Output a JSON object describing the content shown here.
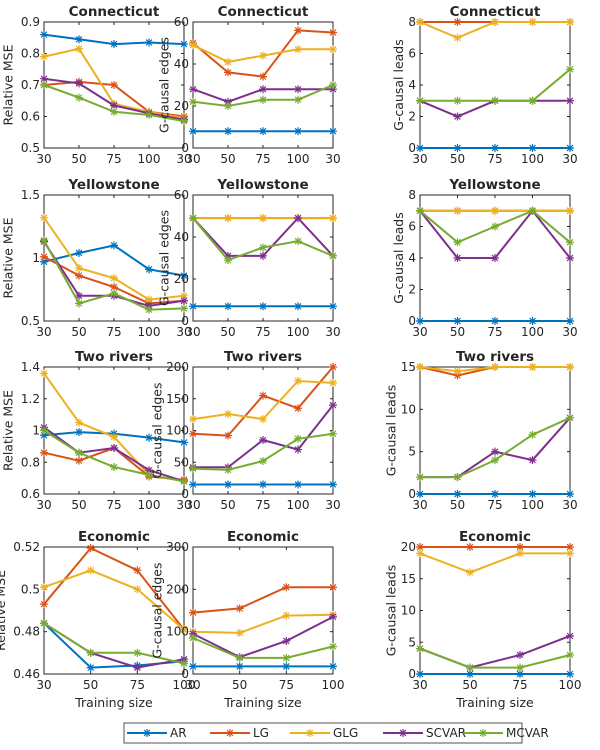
{
  "legend": [
    {
      "name": "AR",
      "color": "#0072BD"
    },
    {
      "name": "LG",
      "color": "#D95319"
    },
    {
      "name": "GLG",
      "color": "#EDB120"
    },
    {
      "name": "SCVAR",
      "color": "#7E2F8E"
    },
    {
      "name": "MCVAR",
      "color": "#77AC30"
    }
  ],
  "chart_data": [
    {
      "type": "line",
      "title": "Connecticut",
      "ylabel": "Relative MSE",
      "xlabel": "",
      "categories": [
        "30",
        "50",
        "75",
        "100",
        "30"
      ],
      "ylim": [
        0.5,
        0.9
      ],
      "yticks": [
        "0.5",
        "0.6",
        "0.7",
        "0.8",
        "0.9"
      ],
      "series": [
        {
          "name": "AR",
          "values": [
            0.86,
            0.845,
            0.83,
            0.835,
            0.83
          ]
        },
        {
          "name": "LG",
          "values": [
            0.7,
            0.71,
            0.7,
            0.615,
            0.6
          ]
        },
        {
          "name": "GLG",
          "values": [
            0.79,
            0.815,
            0.64,
            0.615,
            0.595
          ]
        },
        {
          "name": "SCVAR",
          "values": [
            0.72,
            0.705,
            0.635,
            0.61,
            0.59
          ]
        },
        {
          "name": "MCVAR",
          "values": [
            0.7,
            0.66,
            0.615,
            0.605,
            0.585
          ]
        }
      ]
    },
    {
      "type": "line",
      "title": "Connecticut",
      "ylabel": "G-causal edges",
      "xlabel": "",
      "categories": [
        "30",
        "50",
        "75",
        "100",
        "30"
      ],
      "ylim": [
        0,
        60
      ],
      "yticks": [
        "0",
        "20",
        "40",
        "60"
      ],
      "series": [
        {
          "name": "AR",
          "values": [
            8,
            8,
            8,
            8,
            8
          ]
        },
        {
          "name": "LG",
          "values": [
            50,
            36,
            34,
            56,
            55
          ]
        },
        {
          "name": "GLG",
          "values": [
            49,
            41,
            44,
            47,
            47
          ]
        },
        {
          "name": "SCVAR",
          "values": [
            28,
            22,
            28,
            28,
            28
          ]
        },
        {
          "name": "MCVAR",
          "values": [
            22,
            20,
            23,
            23,
            30
          ]
        }
      ]
    },
    {
      "type": "line",
      "title": "Connecticut",
      "ylabel": "G-causal leads",
      "xlabel": "",
      "categories": [
        "30",
        "50",
        "75",
        "100",
        "30"
      ],
      "ylim": [
        0,
        8
      ],
      "yticks": [
        "0",
        "2",
        "4",
        "6",
        "8"
      ],
      "series": [
        {
          "name": "AR",
          "values": [
            0,
            0,
            0,
            0,
            0
          ]
        },
        {
          "name": "LG",
          "values": [
            8,
            8,
            8,
            8,
            8
          ]
        },
        {
          "name": "GLG",
          "values": [
            8,
            7,
            8,
            8,
            8
          ]
        },
        {
          "name": "SCVAR",
          "values": [
            3,
            2,
            3,
            3,
            3
          ]
        },
        {
          "name": "MCVAR",
          "values": [
            3,
            3,
            3,
            3,
            5
          ]
        }
      ]
    },
    {
      "type": "line",
      "title": "Yellowstone",
      "ylabel": "Relative MSE",
      "xlabel": "",
      "categories": [
        "30",
        "50",
        "75",
        "100",
        "30"
      ],
      "ylim": [
        0.5,
        1.5
      ],
      "yticks": [
        "0.5",
        "1",
        "1.5"
      ],
      "series": [
        {
          "name": "AR",
          "values": [
            0.97,
            1.04,
            1.1,
            0.91,
            0.86
          ]
        },
        {
          "name": "LG",
          "values": [
            1.01,
            0.86,
            0.77,
            0.64,
            0.66
          ]
        },
        {
          "name": "GLG",
          "values": [
            1.32,
            0.92,
            0.84,
            0.67,
            0.7
          ]
        },
        {
          "name": "SCVAR",
          "values": [
            1.13,
            0.7,
            0.7,
            0.62,
            0.66
          ]
        },
        {
          "name": "MCVAR",
          "values": [
            1.14,
            0.64,
            0.72,
            0.59,
            0.6
          ]
        }
      ]
    },
    {
      "type": "line",
      "title": "Yellowstone",
      "ylabel": "G-causal edges",
      "xlabel": "",
      "categories": [
        "30",
        "50",
        "75",
        "100",
        "30"
      ],
      "ylim": [
        0,
        60
      ],
      "yticks": [
        "0",
        "20",
        "40",
        "60"
      ],
      "series": [
        {
          "name": "AR",
          "values": [
            7,
            7,
            7,
            7,
            7
          ]
        },
        {
          "name": "LG",
          "values": [
            49,
            49,
            49,
            49,
            49
          ]
        },
        {
          "name": "GLG",
          "values": [
            49,
            49,
            49,
            49,
            49
          ]
        },
        {
          "name": "SCVAR",
          "values": [
            49,
            31,
            31,
            49,
            31
          ]
        },
        {
          "name": "MCVAR",
          "values": [
            49,
            29,
            35,
            38,
            31
          ]
        }
      ]
    },
    {
      "type": "line",
      "title": "Yellowstone",
      "ylabel": "G-causal leads",
      "xlabel": "",
      "categories": [
        "30",
        "50",
        "75",
        "100",
        "30"
      ],
      "ylim": [
        0,
        8
      ],
      "yticks": [
        "0",
        "2",
        "4",
        "6",
        "8"
      ],
      "series": [
        {
          "name": "AR",
          "values": [
            0,
            0,
            0,
            0,
            0
          ]
        },
        {
          "name": "LG",
          "values": [
            7,
            7,
            7,
            7,
            7
          ]
        },
        {
          "name": "GLG",
          "values": [
            7,
            7,
            7,
            7,
            7
          ]
        },
        {
          "name": "SCVAR",
          "values": [
            7,
            4,
            4,
            7,
            4
          ]
        },
        {
          "name": "MCVAR",
          "values": [
            7,
            5,
            6,
            7,
            5
          ]
        }
      ]
    },
    {
      "type": "line",
      "title": "Two rivers",
      "ylabel": "Relative MSE",
      "xlabel": "",
      "categories": [
        "30",
        "50",
        "75",
        "100",
        "30"
      ],
      "ylim": [
        0.6,
        1.4
      ],
      "yticks": [
        "0.6",
        "0.8",
        "1",
        "1.2",
        "1.4"
      ],
      "series": [
        {
          "name": "AR",
          "values": [
            0.97,
            0.99,
            0.98,
            0.955,
            0.925
          ]
        },
        {
          "name": "LG",
          "values": [
            0.86,
            0.81,
            0.89,
            0.71,
            0.69
          ]
        },
        {
          "name": "GLG",
          "values": [
            1.36,
            1.05,
            0.96,
            0.72,
            0.68
          ]
        },
        {
          "name": "SCVAR",
          "values": [
            1.02,
            0.86,
            0.89,
            0.75,
            0.68
          ]
        },
        {
          "name": "MCVAR",
          "values": [
            1.0,
            0.86,
            0.77,
            0.72,
            0.68
          ]
        }
      ]
    },
    {
      "type": "line",
      "title": "Two rivers",
      "ylabel": "G-causal edges",
      "xlabel": "",
      "categories": [
        "30",
        "50",
        "75",
        "100",
        "30"
      ],
      "ylim": [
        0,
        200
      ],
      "yticks": [
        "0",
        "50",
        "100",
        "150",
        "200"
      ],
      "series": [
        {
          "name": "AR",
          "values": [
            15,
            15,
            15,
            15,
            15
          ]
        },
        {
          "name": "LG",
          "values": [
            95,
            92,
            155,
            135,
            200
          ]
        },
        {
          "name": "GLG",
          "values": [
            118,
            126,
            118,
            178,
            175
          ]
        },
        {
          "name": "SCVAR",
          "values": [
            42,
            42,
            85,
            70,
            140
          ]
        },
        {
          "name": "MCVAR",
          "values": [
            40,
            38,
            52,
            87,
            95
          ]
        }
      ]
    },
    {
      "type": "line",
      "title": "Two rivers",
      "ylabel": "G-causal leads",
      "xlabel": "",
      "categories": [
        "30",
        "50",
        "75",
        "100",
        "30"
      ],
      "ylim": [
        0,
        15
      ],
      "yticks": [
        "0",
        "5",
        "10",
        "15"
      ],
      "series": [
        {
          "name": "AR",
          "values": [
            0,
            0,
            0,
            0,
            0
          ]
        },
        {
          "name": "LG",
          "values": [
            15,
            14,
            15,
            15,
            15
          ]
        },
        {
          "name": "GLG",
          "values": [
            15,
            14.5,
            15,
            15,
            15
          ]
        },
        {
          "name": "SCVAR",
          "values": [
            2,
            2,
            5,
            4,
            9
          ]
        },
        {
          "name": "MCVAR",
          "values": [
            2,
            2,
            4,
            7,
            9
          ]
        }
      ]
    },
    {
      "type": "line",
      "title": "Economic",
      "ylabel": "Relative MSE",
      "xlabel": "Training size",
      "categories": [
        "30",
        "50",
        "75",
        "100"
      ],
      "ylim": [
        0.46,
        0.52
      ],
      "yticks": [
        "0.46",
        "0.48",
        "0.5",
        "0.52"
      ],
      "series": [
        {
          "name": "AR",
          "values": [
            0.484,
            0.463,
            0.464,
            0.466
          ]
        },
        {
          "name": "LG",
          "values": [
            0.493,
            0.5195,
            0.509,
            0.481
          ]
        },
        {
          "name": "GLG",
          "values": [
            0.501,
            0.509,
            0.5,
            0.481
          ]
        },
        {
          "name": "SCVAR",
          "values": [
            0.484,
            0.47,
            0.463,
            0.467
          ]
        },
        {
          "name": "MCVAR",
          "values": [
            0.484,
            0.47,
            0.47,
            0.465
          ]
        }
      ]
    },
    {
      "type": "line",
      "title": "Economic",
      "ylabel": "G-causal edges",
      "xlabel": "Training size",
      "categories": [
        "30",
        "50",
        "75",
        "100"
      ],
      "ylim": [
        0,
        300
      ],
      "yticks": [
        "0",
        "100",
        "200",
        "300"
      ],
      "series": [
        {
          "name": "AR",
          "values": [
            18,
            18,
            18,
            18
          ]
        },
        {
          "name": "LG",
          "values": [
            145,
            155,
            205,
            205
          ]
        },
        {
          "name": "GLG",
          "values": [
            100,
            97,
            138,
            140
          ]
        },
        {
          "name": "SCVAR",
          "values": [
            95,
            40,
            78,
            135
          ]
        },
        {
          "name": "MCVAR",
          "values": [
            85,
            38,
            38,
            65
          ]
        }
      ]
    },
    {
      "type": "line",
      "title": "Economic",
      "ylabel": "G-causal leads",
      "xlabel": "Training size",
      "categories": [
        "30",
        "50",
        "75",
        "100"
      ],
      "ylim": [
        0,
        20
      ],
      "yticks": [
        "0",
        "5",
        "10",
        "15",
        "20"
      ],
      "series": [
        {
          "name": "AR",
          "values": [
            0,
            0,
            0,
            0
          ]
        },
        {
          "name": "LG",
          "values": [
            20,
            20,
            20,
            20
          ]
        },
        {
          "name": "GLG",
          "values": [
            19,
            16,
            19,
            19
          ]
        },
        {
          "name": "SCVAR",
          "values": [
            4,
            1,
            3,
            6
          ]
        },
        {
          "name": "MCVAR",
          "values": [
            4,
            1,
            1,
            3
          ]
        }
      ]
    }
  ]
}
